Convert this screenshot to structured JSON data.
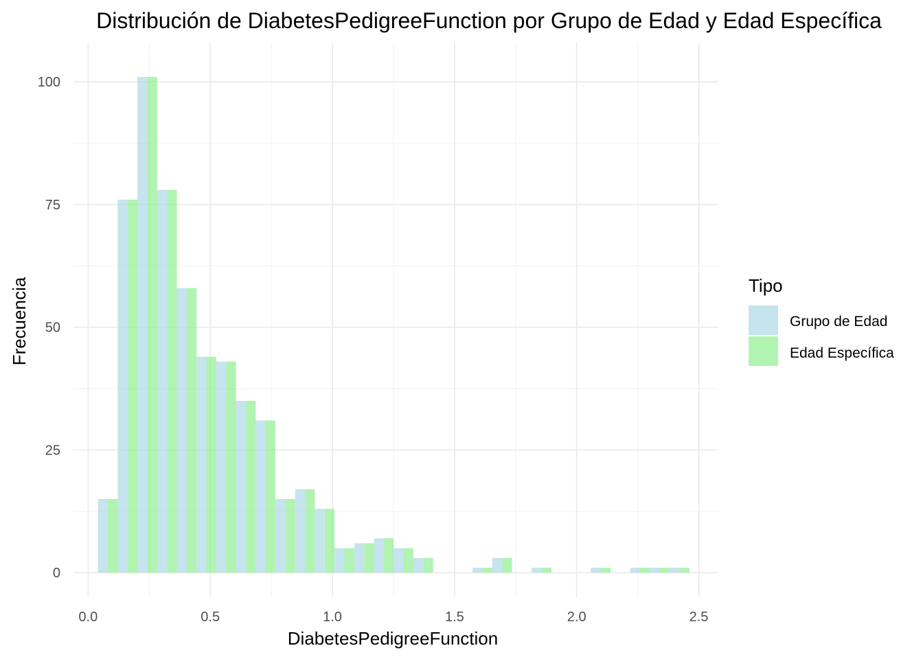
{
  "chart_data": {
    "type": "bar",
    "title": "Distribución de DiabetesPedigreeFunction por Grupo de Edad y Edad Específica",
    "xlabel": "DiabetesPedigreeFunction",
    "ylabel": "Frecuencia",
    "xlim": [
      -0.06,
      2.58
    ],
    "ylim": [
      -5,
      108
    ],
    "x_ticks": [
      0.0,
      0.5,
      1.0,
      1.5,
      2.0,
      2.5
    ],
    "x_tick_labels": [
      "0.0",
      "0.5",
      "1.0",
      "1.5",
      "2.0",
      "2.5"
    ],
    "y_ticks": [
      0,
      25,
      50,
      75,
      100
    ],
    "y_tick_labels": [
      "0",
      "25",
      "50",
      "75",
      "100"
    ],
    "grid": true,
    "legend": {
      "title": "Tipo",
      "position": "right"
    },
    "bin_width": 0.0807,
    "bin_centers": [
      0.0807,
      0.1614,
      0.2421,
      0.3228,
      0.4035,
      0.4842,
      0.5649,
      0.6456,
      0.7263,
      0.807,
      0.8877,
      0.9684,
      1.0491,
      1.1298,
      1.2105,
      1.2912,
      1.3719,
      1.4526,
      1.5333,
      1.614,
      1.6947,
      1.7754,
      1.8561,
      1.9368,
      2.0175,
      2.0982,
      2.1789,
      2.2596,
      2.3403,
      2.421
    ],
    "series": [
      {
        "name": "Grupo de Edad",
        "color": "#add8e6",
        "values": [
          15,
          76,
          101,
          78,
          58,
          44,
          43,
          35,
          31,
          15,
          17,
          13,
          5,
          6,
          7,
          5,
          3,
          0,
          0,
          1,
          3,
          0,
          1,
          0,
          0,
          1,
          0,
          1,
          1,
          1
        ]
      },
      {
        "name": "Edad Específica",
        "color": "#90ee90",
        "values": [
          15,
          76,
          101,
          78,
          58,
          44,
          43,
          35,
          31,
          15,
          17,
          13,
          5,
          6,
          7,
          5,
          3,
          0,
          0,
          1,
          3,
          0,
          1,
          0,
          0,
          1,
          0,
          1,
          1,
          1
        ]
      }
    ]
  }
}
